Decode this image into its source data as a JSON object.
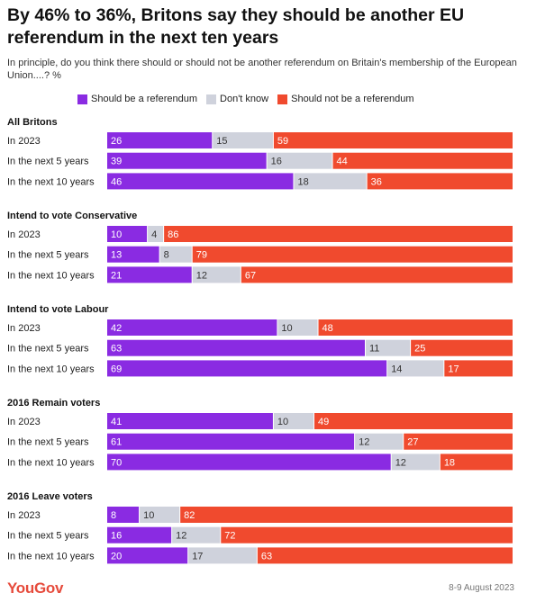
{
  "title": "By 46% to 36%, Britons say they should be another EU referendum in the next ten years",
  "subtitle": "In principle, do you think there should or should not be another referendum on Britain's membership of the European Union....? %",
  "legend": [
    {
      "label": "Should be a referendum",
      "color": "#8a2be2"
    },
    {
      "label": "Don't know",
      "color": "#cfd2dc"
    },
    {
      "label": "Should not be a referendum",
      "color": "#f04a2e"
    }
  ],
  "brand": "YouGov",
  "date": "8-9 August 2023",
  "chart_data": {
    "type": "bar",
    "orientation": "horizontal",
    "stacked": true,
    "series_names": [
      "Should be a referendum",
      "Don't know",
      "Should not be a referendum"
    ],
    "colors": [
      "#8a2be2",
      "#cfd2dc",
      "#f04a2e"
    ],
    "groups": [
      {
        "title": "All Britons",
        "rows": [
          {
            "label": "In 2023",
            "values": [
              26,
              15,
              59
            ]
          },
          {
            "label": "In the next 5 years",
            "values": [
              39,
              16,
              44
            ]
          },
          {
            "label": "In the next 10 years",
            "values": [
              46,
              18,
              36
            ]
          }
        ]
      },
      {
        "title": "Intend to vote Conservative",
        "rows": [
          {
            "label": "In 2023",
            "values": [
              10,
              4,
              86
            ]
          },
          {
            "label": "In the next 5 years",
            "values": [
              13,
              8,
              79
            ]
          },
          {
            "label": "In the next 10 years",
            "values": [
              21,
              12,
              67
            ]
          }
        ]
      },
      {
        "title": "Intend to vote Labour",
        "rows": [
          {
            "label": "In 2023",
            "values": [
              42,
              10,
              48
            ]
          },
          {
            "label": "In the next 5 years",
            "values": [
              63,
              11,
              25
            ]
          },
          {
            "label": "In the next 10 years",
            "values": [
              69,
              14,
              17
            ]
          }
        ]
      },
      {
        "title": "2016 Remain voters",
        "rows": [
          {
            "label": "In 2023",
            "values": [
              41,
              10,
              49
            ]
          },
          {
            "label": "In the next 5 years",
            "values": [
              61,
              12,
              27
            ]
          },
          {
            "label": "In the next 10 years",
            "values": [
              70,
              12,
              18
            ]
          }
        ]
      },
      {
        "title": "2016 Leave voters",
        "rows": [
          {
            "label": "In 2023",
            "values": [
              8,
              10,
              82
            ]
          },
          {
            "label": "In the next 5 years",
            "values": [
              16,
              12,
              72
            ]
          },
          {
            "label": "In the next 10 years",
            "values": [
              20,
              17,
              63
            ]
          }
        ]
      }
    ]
  }
}
